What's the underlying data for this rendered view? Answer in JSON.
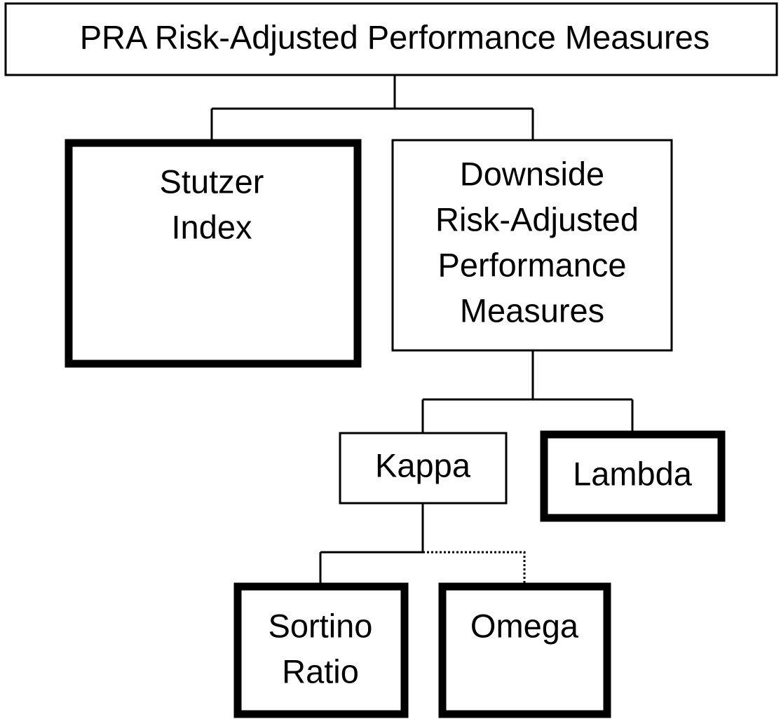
{
  "nodes": [
    {
      "lines": [
        "PRA Risk-Adjusted Performance Measures"
      ]
    },
    {
      "lines": [
        "Stutzer",
        "Index"
      ]
    },
    {
      "lines": [
        "Downside",
        "Risk-Adjusted",
        "Performance",
        "Measures"
      ]
    },
    {
      "lines": [
        "Kappa"
      ]
    },
    {
      "lines": [
        "Lambda"
      ]
    },
    {
      "lines": [
        "Sortino",
        "Ratio"
      ]
    },
    {
      "lines": [
        "Omega"
      ]
    }
  ]
}
